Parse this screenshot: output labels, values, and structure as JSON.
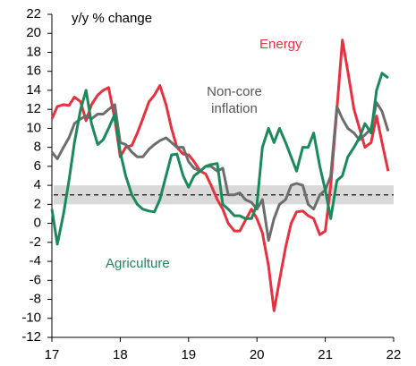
{
  "chart_data": {
    "type": "line",
    "title": "y/y % change",
    "x": [
      17.0,
      17.08,
      17.17,
      17.25,
      17.33,
      17.42,
      17.5,
      17.58,
      17.67,
      17.75,
      17.83,
      17.92,
      18.0,
      18.08,
      18.17,
      18.25,
      18.33,
      18.42,
      18.5,
      18.58,
      18.67,
      18.75,
      18.83,
      18.92,
      19.0,
      19.08,
      19.17,
      19.25,
      19.33,
      19.42,
      19.5,
      19.58,
      19.67,
      19.75,
      19.83,
      19.92,
      20.0,
      20.08,
      20.17,
      20.25,
      20.33,
      20.42,
      20.5,
      20.58,
      20.67,
      20.75,
      20.83,
      20.92,
      21.0,
      21.08,
      21.17,
      21.25,
      21.33,
      21.42,
      21.5,
      21.58,
      21.67,
      21.75,
      21.83,
      21.92
    ],
    "series": [
      {
        "name": "Energy",
        "color": "#e8303f",
        "values": [
          11,
          12.3,
          12.5,
          12.4,
          13.3,
          12.8,
          10.8,
          12.5,
          13.5,
          14,
          14.3,
          11,
          7,
          8,
          8.2,
          9.5,
          11,
          12.8,
          13.5,
          14.5,
          12.5,
          10,
          8,
          7.3,
          7.2,
          6.5,
          5.5,
          5.2,
          4,
          2.5,
          1.5,
          0,
          -0.8,
          -0.8,
          0.3,
          1.5,
          0.5,
          -1,
          -4.5,
          -9.2,
          -6,
          -2.5,
          0,
          1.2,
          1.3,
          0.8,
          0.5,
          -1.2,
          -0.8,
          4,
          12,
          19.3,
          16,
          12,
          10,
          8,
          8.5,
          11.3,
          8.5,
          5.5
        ]
      },
      {
        "name": "Non-core inflation",
        "color": "#6d6d6d",
        "values": [
          7.5,
          6.8,
          8,
          9,
          10.5,
          11,
          11.3,
          11,
          11.5,
          11.5,
          12,
          12.5,
          8.5,
          8.3,
          7.5,
          7,
          7,
          7.8,
          8.3,
          8.7,
          9,
          8.5,
          8,
          8,
          6.5,
          5.8,
          5.5,
          6,
          6,
          5.5,
          5.8,
          3,
          3,
          3.2,
          2.5,
          2.2,
          1.5,
          2.5,
          -1.8,
          0.5,
          2,
          2.5,
          4,
          4.2,
          4,
          2,
          1.5,
          3,
          3.5,
          5,
          12.3,
          11,
          10,
          9.5,
          8.8,
          9.3,
          10,
          12.7,
          11.8,
          9.7
        ]
      },
      {
        "name": "Agriculture",
        "color": "#1a8a5a",
        "values": [
          1.5,
          -2.2,
          1,
          4.5,
          8.5,
          12,
          14,
          10.5,
          8.3,
          8.8,
          10,
          11.5,
          7.5,
          5,
          3,
          2,
          1.5,
          1.3,
          1.2,
          2.5,
          5,
          7.2,
          7.3,
          5,
          3.8,
          5,
          5.5,
          6,
          6.2,
          6.3,
          2,
          1.5,
          0.8,
          0.8,
          0.5,
          0.5,
          2,
          8,
          10,
          8.5,
          10,
          8.5,
          7,
          5.5,
          8,
          8,
          9.5,
          6,
          3.5,
          0.5,
          4.5,
          5,
          7,
          8,
          9,
          10.5,
          9.5,
          14,
          15.8,
          15.3
        ]
      }
    ],
    "target_band": [
      2,
      4
    ],
    "target_line": 3,
    "band_color": "#d9d9d9",
    "xlim": [
      17,
      22
    ],
    "xticks": [
      17,
      18,
      19,
      20,
      21,
      22
    ],
    "ylim": [
      -12,
      22
    ],
    "yticks": [
      -12,
      -10,
      -8,
      -6,
      -4,
      -2,
      0,
      2,
      4,
      6,
      8,
      10,
      12,
      14,
      16,
      18,
      20,
      22
    ]
  }
}
